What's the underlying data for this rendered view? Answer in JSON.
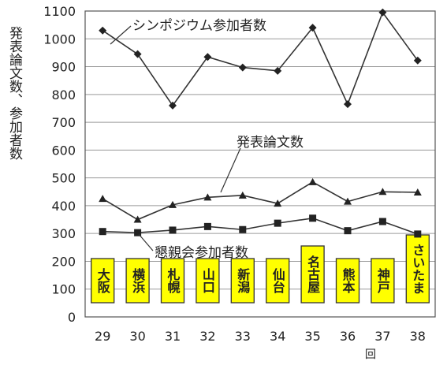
{
  "chart_data": {
    "type": "line",
    "title": "",
    "ylabel": "発表論文数、参加者数",
    "xlabel": "回",
    "ylim": [
      0,
      1100
    ],
    "yticks": [
      0,
      100,
      200,
      300,
      400,
      500,
      600,
      700,
      800,
      900,
      1000,
      1100
    ],
    "categories": [
      "29",
      "30",
      "31",
      "32",
      "33",
      "34",
      "35",
      "36",
      "37",
      "38"
    ],
    "grid": true,
    "series": [
      {
        "name": "シンポジウム参加者数",
        "marker": "diamond",
        "values": [
          1030,
          945,
          760,
          935,
          897,
          885,
          1040,
          765,
          1095,
          922
        ]
      },
      {
        "name": "発表論文数",
        "marker": "triangle",
        "values": [
          425,
          350,
          403,
          430,
          437,
          408,
          485,
          415,
          450,
          448
        ]
      },
      {
        "name": "懇親会参加者数",
        "marker": "square",
        "values": [
          307,
          303,
          312,
          325,
          314,
          337,
          355,
          310,
          343,
          298
        ]
      }
    ],
    "venues": [
      "大阪",
      "横浜",
      "札幌",
      "山口",
      "新潟",
      "仙台",
      "名古屋",
      "熊本",
      "神戸",
      "さいたま"
    ],
    "colors": {
      "line": "#333333",
      "grid": "#9a9a9a",
      "venue_fill": "#ffff00",
      "venue_border": "#333333"
    }
  }
}
